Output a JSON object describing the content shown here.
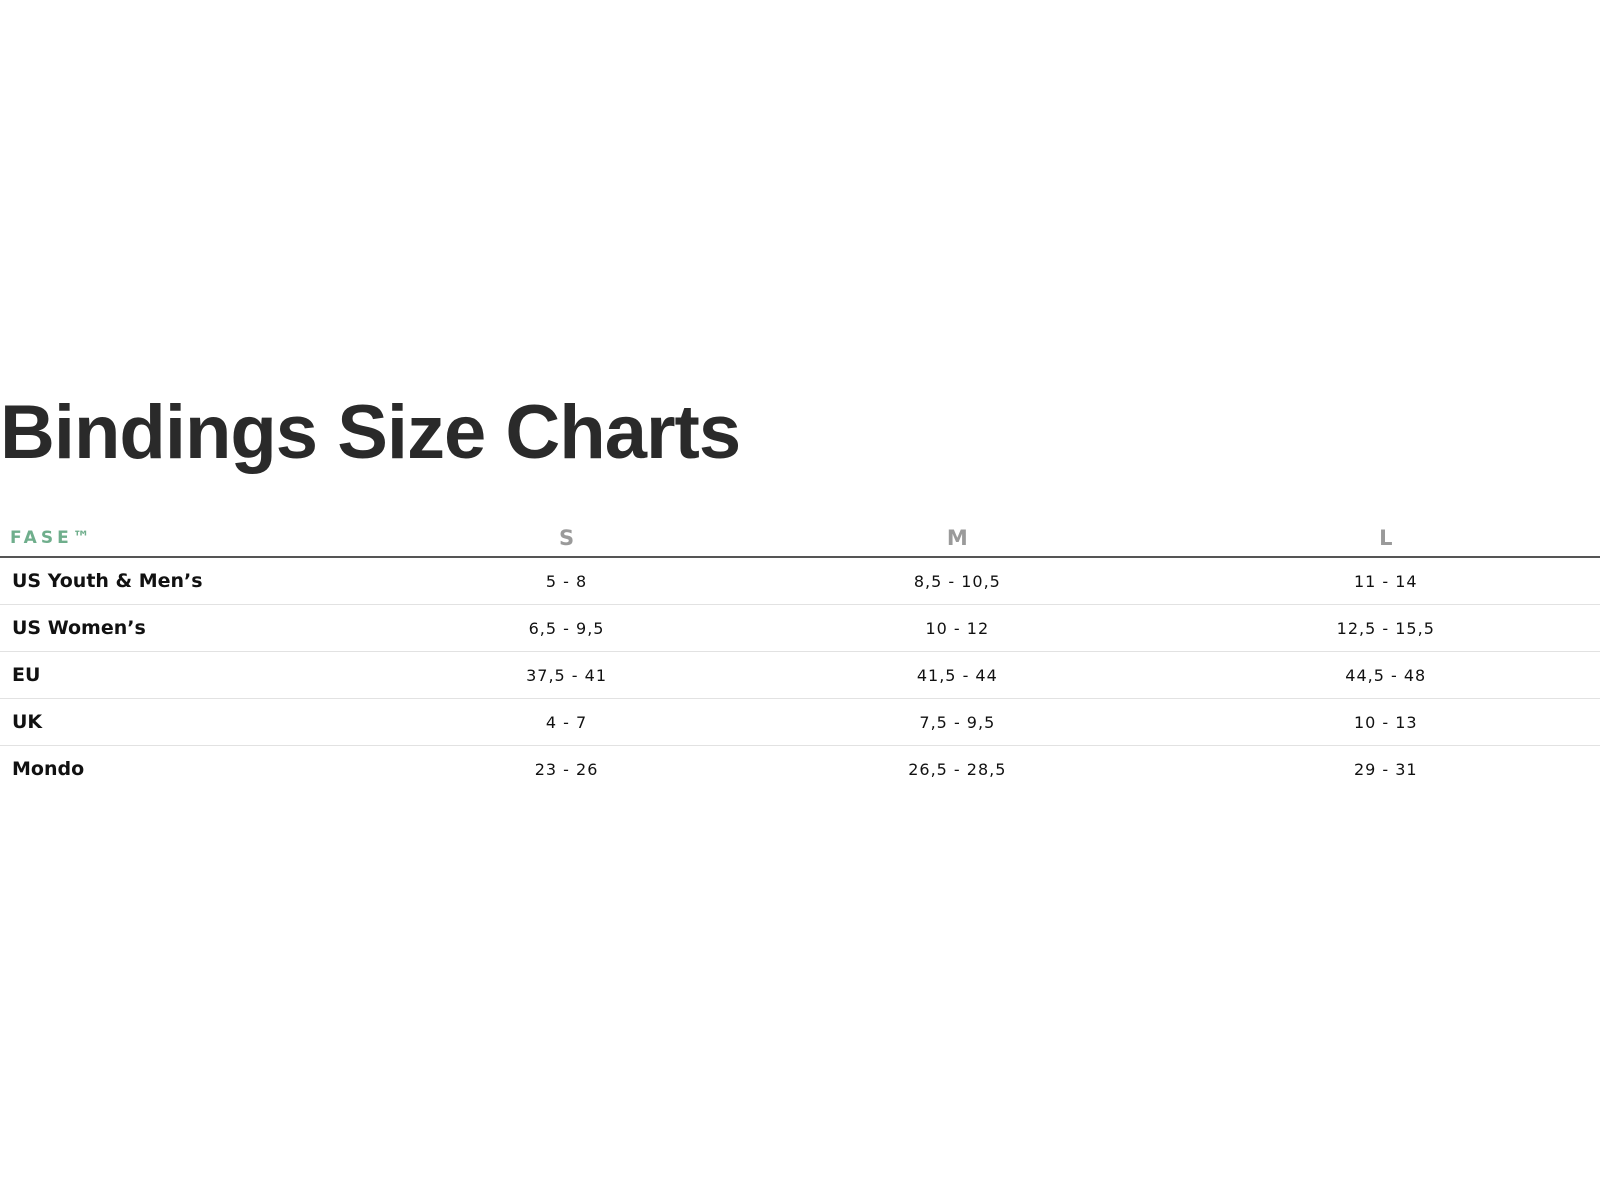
{
  "title": "Bindings Size Charts",
  "table": {
    "brand": "FASE™",
    "sizes": [
      "S",
      "M",
      "L"
    ],
    "rows": [
      {
        "label": "US Youth & Men’s",
        "values": [
          "5 - 8",
          "8,5 - 10,5",
          "11 - 14"
        ]
      },
      {
        "label": "US Women’s",
        "values": [
          "6,5 - 9,5",
          "10 - 12",
          "12,5 - 15,5"
        ]
      },
      {
        "label": "EU",
        "values": [
          "37,5 - 41",
          "41,5 - 44",
          "44,5 - 48"
        ]
      },
      {
        "label": "UK",
        "values": [
          "4 - 7",
          "7,5 - 9,5",
          "10 - 13"
        ]
      },
      {
        "label": "Mondo",
        "values": [
          "23 - 26",
          "26,5 - 28,5",
          "29 - 31"
        ]
      }
    ]
  },
  "colors": {
    "brand": "#6fae8c",
    "size_header": "#9a9a9a",
    "title": "#2a2a2a"
  }
}
